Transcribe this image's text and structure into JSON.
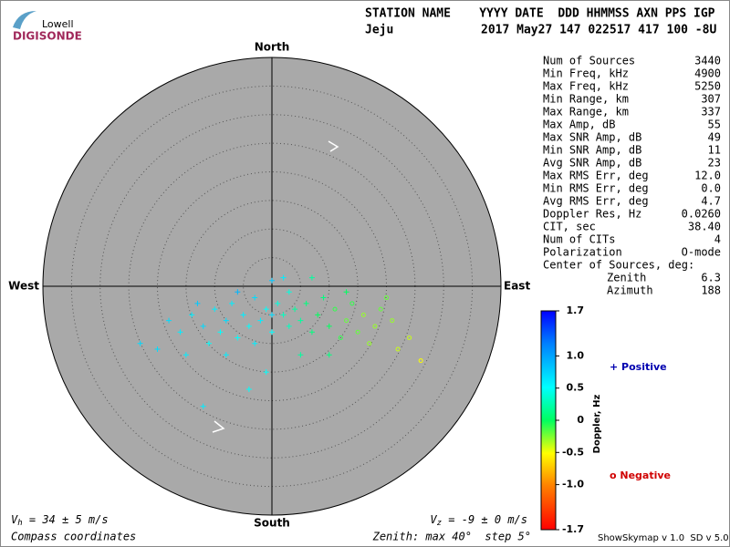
{
  "logo": {
    "top": "Lowell",
    "bottom": "DIGISONDE"
  },
  "header": {
    "label_row": "STATION NAME    YYYY DATE  DDD HHMMSS AXN PPS IGP",
    "station": "Jeju",
    "value_row": "2017 May27 147 022517 417 100 -8U"
  },
  "stats": [
    {
      "label": "Num of Sources",
      "value": "3440"
    },
    {
      "label": "Min Freq, kHz",
      "value": "4900"
    },
    {
      "label": "Max Freq, kHz",
      "value": "5250"
    },
    {
      "label": "Min Range, km",
      "value": "307"
    },
    {
      "label": "Max Range, km",
      "value": "337"
    },
    {
      "label": "Max Amp, dB",
      "value": "55"
    },
    {
      "label": "Max SNR Amp, dB",
      "value": "49"
    },
    {
      "label": "Min SNR Amp, dB",
      "value": "11"
    },
    {
      "label": "Avg SNR Amp, dB",
      "value": "23"
    },
    {
      "label": "Max RMS Err, deg",
      "value": "12.0"
    },
    {
      "label": "Min RMS Err, deg",
      "value": "0.0"
    },
    {
      "label": "Avg RMS Err, deg",
      "value": "4.7"
    },
    {
      "label": "Doppler Res, Hz",
      "value": "0.0260"
    },
    {
      "label": "CIT, sec",
      "value": "38.40"
    },
    {
      "label": "Num of CITs",
      "value": "4"
    },
    {
      "label": "Polarization",
      "value": "O-mode"
    }
  ],
  "center": {
    "title": "Center of Sources, deg:",
    "rows": [
      {
        "label": "Zenith",
        "value": "6.3"
      },
      {
        "label": "Azimuth",
        "value": "188"
      }
    ]
  },
  "compass": {
    "north": "North",
    "south": "South",
    "east": "East",
    "west": "West"
  },
  "velocity": {
    "h": {
      "symbol": "V",
      "sub": "h",
      "text": " = 34 ± 5 m/s"
    },
    "z": {
      "symbol": "V",
      "sub": "z",
      "text": " = -9 ± 0 m/s"
    }
  },
  "footer": {
    "left": "Compass coordinates",
    "middle": "Zenith: max 40°  step 5°",
    "right": "ShowSkymap v 1.0  SD v 5.0"
  },
  "legend": {
    "positive": "+ Positive",
    "negative": "o Negative"
  },
  "chart_data": {
    "type": "skymap",
    "zenith_max": 40,
    "ring_step": 5,
    "points": [
      [
        -14,
        -5,
        0.6
      ],
      [
        -12,
        -7,
        0.7
      ],
      [
        -10,
        -4,
        0.6
      ],
      [
        -9,
        -8,
        0.5
      ],
      [
        -8,
        -6,
        0.7
      ],
      [
        -7,
        -3,
        0.6
      ],
      [
        -6,
        -9,
        0.5
      ],
      [
        -5,
        -5,
        0.6
      ],
      [
        -4,
        -7,
        0.5
      ],
      [
        -3,
        -2,
        0.7
      ],
      [
        -2,
        -6,
        0.6
      ],
      [
        -1,
        -4,
        0.5
      ],
      [
        0,
        -8,
        0.5
      ],
      [
        -16,
        -8,
        0.6
      ],
      [
        -18,
        -6,
        0.7
      ],
      [
        -11,
        -10,
        0.5
      ],
      [
        -13,
        -3,
        0.8
      ],
      [
        -20,
        -11,
        0.7
      ],
      [
        -15,
        -12,
        0.6
      ],
      [
        -6,
        -1,
        0.9
      ],
      [
        0,
        1,
        0.8
      ],
      [
        1,
        -3,
        0.4
      ],
      [
        2,
        -5,
        0.3
      ],
      [
        3,
        -7,
        0.3
      ],
      [
        4,
        -4,
        0.2
      ],
      [
        5,
        -6,
        0.2
      ],
      [
        6,
        -3,
        0.1
      ],
      [
        7,
        -8,
        0.1
      ],
      [
        8,
        -5,
        0.0
      ],
      [
        9,
        -2,
        0.1
      ],
      [
        10,
        -7,
        0.0
      ],
      [
        11,
        -4,
        -0.1
      ],
      [
        12,
        -9,
        -0.1
      ],
      [
        13,
        -6,
        -0.2
      ],
      [
        14,
        -3,
        -0.1
      ],
      [
        15,
        -8,
        -0.2
      ],
      [
        16,
        -5,
        -0.3
      ],
      [
        17,
        -10,
        -0.3
      ],
      [
        18,
        -7,
        -0.3
      ],
      [
        19,
        -4,
        -0.2
      ],
      [
        21,
        -6,
        -0.3
      ],
      [
        22,
        -11,
        -0.4
      ],
      [
        24,
        -9,
        -0.4
      ],
      [
        26,
        -13,
        -0.5
      ],
      [
        -4,
        -18,
        0.5
      ],
      [
        2,
        1.5,
        0.6
      ],
      [
        3,
        -1,
        0.4
      ],
      [
        -8,
        -12,
        0.6
      ],
      [
        10,
        -12,
        0.1
      ],
      [
        13,
        -1,
        0.0
      ],
      [
        7,
        1.5,
        0.2
      ],
      [
        -23,
        -10,
        0.7
      ],
      [
        -12,
        -21,
        0.6
      ],
      [
        20,
        -2,
        -0.2
      ],
      [
        5,
        -12,
        0.2
      ],
      [
        -1,
        -15,
        0.5
      ],
      [
        0,
        -5,
        0.7
      ],
      [
        -3,
        -10,
        0.6
      ]
    ],
    "colorbar": {
      "title": "Doppler, Hz",
      "lim": [
        -1.7,
        1.7
      ],
      "ticks": [
        -1.7,
        {
          "value": -1.0,
          "label": "-1.0"
        },
        -0.5,
        0,
        0.5,
        {
          "value": 1.0,
          "label": "1.0"
        },
        1.7
      ]
    }
  }
}
